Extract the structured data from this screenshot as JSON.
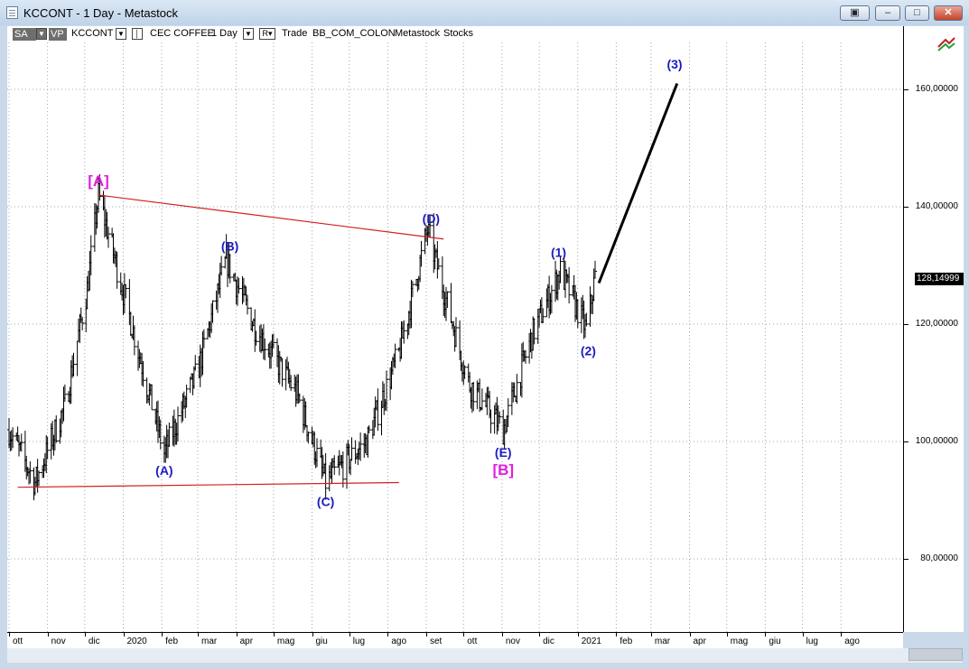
{
  "window": {
    "title": "KCCONT - 1 Day - Metastock"
  },
  "toolbar": {
    "sa_label": "SA",
    "vp_label": "VP",
    "symbol": "KCCONT",
    "description": "CEC COFFEE",
    "period": "1 Day",
    "trade_text": "Trade",
    "source_text": "BB_COM_COLON",
    "vendor_text": "Metastock",
    "type_text": "Stocks"
  },
  "price_axis": {
    "labels": [
      "160,00000",
      "140,00000",
      "120,00000",
      "100,00000",
      "80,00000"
    ],
    "last_price": "128,14999"
  },
  "time_axis": {
    "labels": [
      "ott",
      "nov",
      "dic",
      "2020",
      "feb",
      "mar",
      "apr",
      "mag",
      "giu",
      "lug",
      "ago",
      "set",
      "ott",
      "nov",
      "dic",
      "2021",
      "feb",
      "mar",
      "apr",
      "mag",
      "giu",
      "lug",
      "ago"
    ]
  },
  "colors": {
    "wave_blue": "#1c1cbf",
    "wave_magenta": "#e020e0",
    "trendline_red": "#d02020",
    "projection_black": "#000000"
  },
  "chart_data": {
    "type": "bar",
    "title": "",
    "xlabel": "",
    "ylabel": "",
    "y_range": [
      68,
      172
    ],
    "x_range": [
      "2019-10",
      "2021-09"
    ],
    "grid": true,
    "approx_close_path": [
      {
        "date": "2019-10-01",
        "price": 102
      },
      {
        "date": "2019-10-22",
        "price": 93
      },
      {
        "date": "2019-11-15",
        "price": 106
      },
      {
        "date": "2019-12-03",
        "price": 126
      },
      {
        "date": "2019-12-12",
        "price": 142
      },
      {
        "date": "2020-01-10",
        "price": 118
      },
      {
        "date": "2020-02-03",
        "price": 98
      },
      {
        "date": "2020-03-01",
        "price": 112
      },
      {
        "date": "2020-03-24",
        "price": 131
      },
      {
        "date": "2020-04-15",
        "price": 120
      },
      {
        "date": "2020-05-20",
        "price": 108
      },
      {
        "date": "2020-06-12",
        "price": 93
      },
      {
        "date": "2020-07-15",
        "price": 100
      },
      {
        "date": "2020-08-10",
        "price": 115
      },
      {
        "date": "2020-09-02",
        "price": 136
      },
      {
        "date": "2020-10-05",
        "price": 110
      },
      {
        "date": "2020-11-02",
        "price": 102
      },
      {
        "date": "2020-11-25",
        "price": 118
      },
      {
        "date": "2020-12-18",
        "price": 129
      },
      {
        "date": "2021-01-08",
        "price": 119
      },
      {
        "date": "2021-01-15",
        "price": 128.15
      }
    ],
    "wave_labels": [
      {
        "text": "[A]",
        "date": "2019-12-12",
        "price": 142,
        "color": "magenta"
      },
      {
        "text": "(A)",
        "date": "2020-02-03",
        "price": 98,
        "color": "blue"
      },
      {
        "text": "(B)",
        "date": "2020-03-24",
        "price": 131,
        "color": "blue"
      },
      {
        "text": "(C)",
        "date": "2020-06-12",
        "price": 93,
        "color": "blue"
      },
      {
        "text": "(D)",
        "date": "2020-09-02",
        "price": 136,
        "color": "blue"
      },
      {
        "text": "(E)",
        "date": "2020-11-02",
        "price": 102,
        "color": "blue"
      },
      {
        "text": "[B]",
        "date": "2020-11-02",
        "price": 102,
        "color": "magenta"
      },
      {
        "text": "(1)",
        "date": "2020-12-18",
        "price": 129,
        "color": "blue"
      },
      {
        "text": "(2)",
        "date": "2021-01-08",
        "price": 119,
        "color": "blue"
      },
      {
        "text": "(3)",
        "date": "2021-03-20",
        "price": 162,
        "color": "blue"
      }
    ],
    "trendlines": [
      {
        "name": "upper",
        "from": {
          "date": "2019-12-12",
          "price": 142
        },
        "to": {
          "date": "2020-09-15",
          "price": 134.5
        }
      },
      {
        "name": "lower",
        "from": {
          "date": "2019-10-08",
          "price": 92.2
        },
        "to": {
          "date": "2020-08-10",
          "price": 93
        }
      }
    ],
    "projection": {
      "from": {
        "date": "2021-01-18",
        "price": 127
      },
      "to": {
        "date": "2021-03-22",
        "price": 161
      }
    }
  }
}
